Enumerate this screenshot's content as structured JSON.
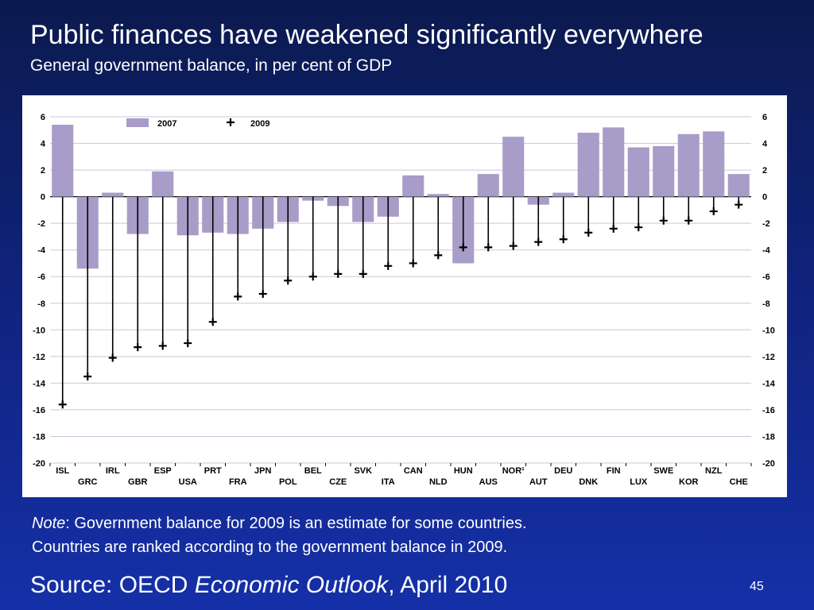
{
  "slide": {
    "title": "Public finances have weakened significantly everywhere",
    "subtitle": "General government balance, in per cent of GDP",
    "note_label": "Note",
    "note_line1": ": Government balance for 2009 is an estimate for some countries.",
    "note_line2": "Countries are ranked according to the government balance in 2009.",
    "source_prefix": "Source: OECD ",
    "source_title": "Economic Outlook",
    "source_suffix": ", April 2010",
    "page_number": "45"
  },
  "chart_data": {
    "type": "bar",
    "categories": [
      "ISL",
      "GRC",
      "IRL",
      "GBR",
      "ESP",
      "USA",
      "PRT",
      "FRA",
      "JPN",
      "POL",
      "BEL",
      "CZE",
      "SVK",
      "ITA",
      "CAN",
      "NLD",
      "HUN",
      "AUS",
      "NOR¹",
      "AUT",
      "DEU",
      "DNK",
      "FIN",
      "LUX",
      "SWE",
      "KOR",
      "NZL",
      "CHE"
    ],
    "series": [
      {
        "name": "2007",
        "type": "bar",
        "color": "#a89cc8",
        "values": [
          5.4,
          -5.4,
          0.3,
          -2.8,
          1.9,
          -2.9,
          -2.7,
          -2.8,
          -2.4,
          -1.9,
          -0.3,
          -0.7,
          -1.9,
          -1.5,
          1.6,
          0.2,
          -5.0,
          1.7,
          4.5,
          -0.6,
          0.3,
          4.8,
          5.2,
          3.7,
          3.8,
          4.7,
          4.9,
          1.7
        ]
      },
      {
        "name": "2009",
        "type": "cross",
        "color": "#000000",
        "values": [
          -15.6,
          -13.5,
          -12.1,
          -11.3,
          -11.2,
          -11.0,
          -9.4,
          -7.5,
          -7.3,
          -6.3,
          -6.0,
          -5.8,
          -5.8,
          -5.2,
          -5.0,
          -4.4,
          -3.8,
          -3.8,
          -3.7,
          -3.4,
          -3.2,
          -2.7,
          -2.4,
          -2.3,
          -1.8,
          -1.8,
          -1.1,
          -0.6
        ]
      }
    ],
    "ylim": [
      -20,
      6
    ],
    "yticks": [
      6,
      4,
      2,
      0,
      -2,
      -4,
      -6,
      -8,
      -10,
      -12,
      -14,
      -16,
      -18,
      -20
    ],
    "grid": true,
    "legend": "top-left"
  }
}
